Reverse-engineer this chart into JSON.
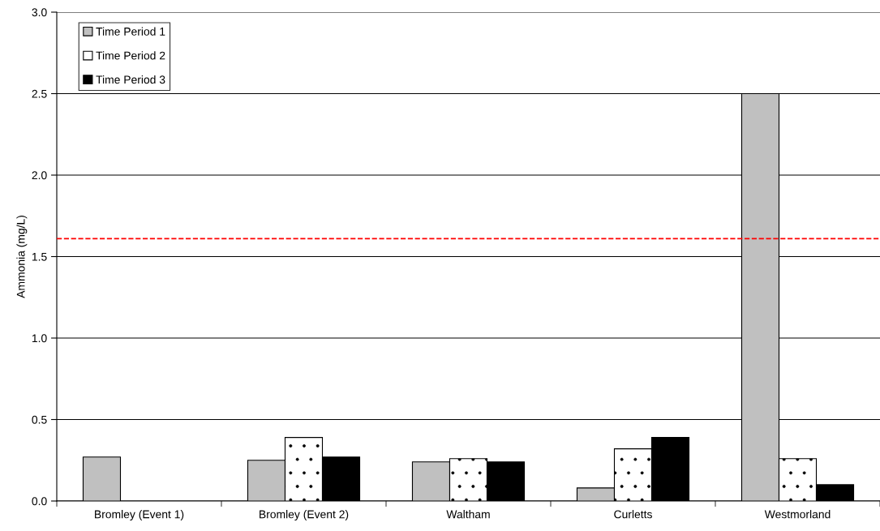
{
  "chart_data": {
    "type": "bar",
    "ylabel": "Ammonia (mg/L)",
    "categories": [
      "Bromley (Event 1)",
      "Bromley (Event 2)",
      "Waltham",
      "Curletts",
      "Westmorland"
    ],
    "series": [
      {
        "name": "Time Period 1",
        "color": "#c0c0c0",
        "values": [
          0.27,
          0.25,
          0.24,
          0.08,
          2.5
        ]
      },
      {
        "name": "Time Period 2",
        "color": "#ffffff",
        "values": [
          null,
          0.39,
          0.26,
          0.32,
          0.26
        ]
      },
      {
        "name": "Time Period 3",
        "color": "#000000",
        "values": [
          null,
          0.27,
          0.24,
          0.39,
          0.1
        ]
      }
    ],
    "ylim": [
      0,
      3.0
    ],
    "yticks": [
      {
        "value": 0,
        "label": "0.0"
      },
      0.5,
      {
        "value": 1,
        "label": "1.0"
      },
      1.5,
      {
        "value": 2,
        "label": "2.0"
      },
      2.5,
      {
        "value": 3,
        "label": "3.0"
      }
    ],
    "ref_lines": [
      {
        "axis": "y",
        "value": 1.61,
        "color": "#ff0000",
        "line_style": "dashed"
      }
    ],
    "grid": "y",
    "legend": "top left"
  }
}
